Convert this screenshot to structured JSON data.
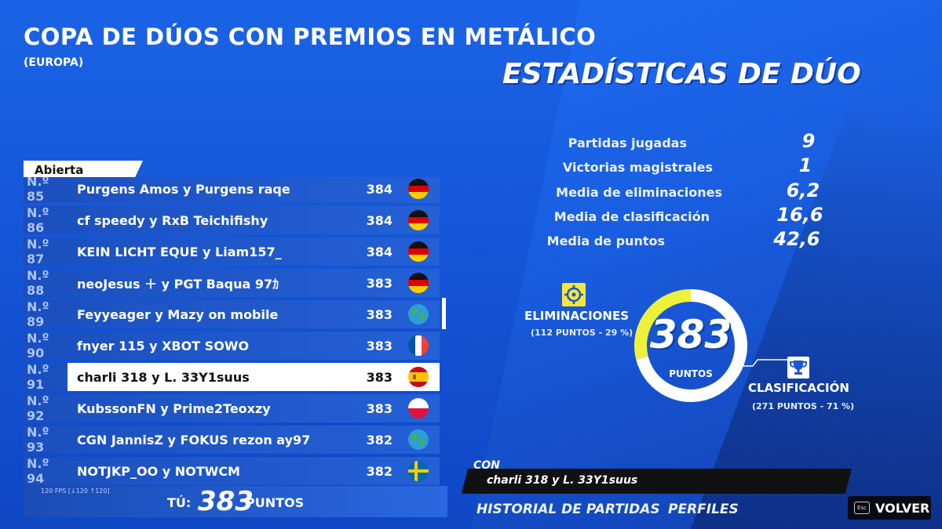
{
  "header": {
    "title": "COPA DE DÚOS CON PREMIOS EN METÁLICO",
    "subtitle": "(EUROPA)",
    "duo_stats_title": "ESTADÍSTICAS DE DÚO"
  },
  "leaderboard": {
    "tab_label": "Abierta",
    "rows": [
      {
        "rank": "N.º 85",
        "names": "Purgens Amos y Purgens raqe",
        "points": "384",
        "flag": "germany"
      },
      {
        "rank": "N.º 86",
        "names": "cf speedy y RxB Teichifishy",
        "points": "384",
        "flag": "germany"
      },
      {
        "rank": "N.º 87",
        "names": "KEIN LICHT EQUE y Liam157_",
        "points": "384",
        "flag": "germany"
      },
      {
        "rank": "N.º 88",
        "names": "neoJesus ＋ y PGT Baqua 97ｶ",
        "points": "383",
        "flag": "germany"
      },
      {
        "rank": "N.º 89",
        "names": "Feyyeager y Mazy on mobile",
        "points": "383",
        "flag": "globe"
      },
      {
        "rank": "N.º 90",
        "names": "fnyer 115 y XBOT SOWO",
        "points": "383",
        "flag": "france"
      },
      {
        "rank": "N.º 91",
        "names": "charli 318 y L. 33Y1suus",
        "points": "383",
        "flag": "spain"
      },
      {
        "rank": "N.º 92",
        "names": "KubssonFN y Prime2Teoxzy",
        "points": "383",
        "flag": "poland"
      },
      {
        "rank": "N.º 93",
        "names": "CGN JannisZ y FOKUS rezon ay97",
        "points": "382",
        "flag": "globe"
      },
      {
        "rank": "N.º 94",
        "names": "NOTJKP_OO y NOTWCM",
        "points": "382",
        "flag": "sweden"
      }
    ],
    "fps": "120 FPS [↓120 ↑120]",
    "you_label": "TÚ:",
    "you_points": "383",
    "you_unit": "PUNTOS"
  },
  "stats": [
    {
      "label": "Partidas jugadas",
      "value": "9"
    },
    {
      "label": "Victorias magistrales",
      "value": "1"
    },
    {
      "label": "Media de eliminaciones",
      "value": "6,2"
    },
    {
      "label": "Media de clasificación",
      "value": "16,6"
    },
    {
      "label": "Media de puntos",
      "value": "42,6"
    }
  ],
  "donut": {
    "total": "383",
    "unit": "PUNTOS",
    "eliminations_label": "ELIMINACIONES",
    "eliminations_sub": "(112 PUNTOS - 29 %)",
    "eliminations_fraction": 0.29,
    "placement_label": "CLASIFICACIÓN",
    "placement_sub": "(271 PUNTOS - 71 %)",
    "colors": {
      "eliminations": "#eef13a",
      "placement": "#ffffff"
    }
  },
  "partner": {
    "con_label": "CON",
    "names": "charli 318 y L. 33Y1suus"
  },
  "nav": {
    "history": "HISTORIAL DE PARTIDAS",
    "profiles": "PERFILES",
    "esc_key": "Esc",
    "back": "VOLVER"
  }
}
